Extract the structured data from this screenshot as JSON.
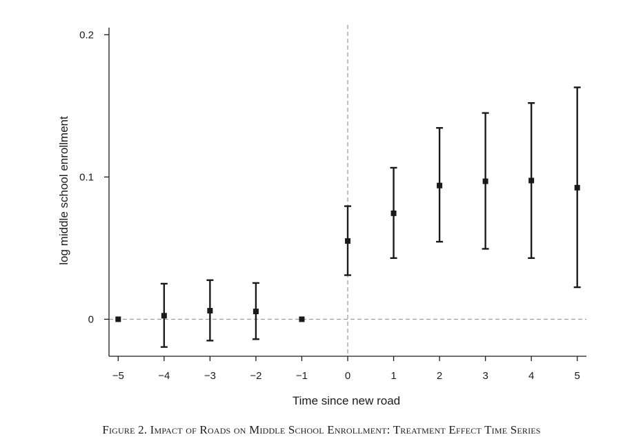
{
  "chart_data": {
    "type": "scatter",
    "subtype": "point-estimate-with-error-bars",
    "x": [
      -5,
      -4,
      -3,
      -2,
      -1,
      0,
      1,
      2,
      3,
      4,
      5
    ],
    "y": [
      0.0,
      0.0025,
      0.006,
      0.0055,
      0.0,
      0.055,
      0.0745,
      0.094,
      0.097,
      0.0975,
      0.0925
    ],
    "ci_lower": [
      0.0,
      -0.0195,
      -0.015,
      -0.014,
      0.0,
      0.031,
      0.043,
      0.0545,
      0.0495,
      0.043,
      0.0225
    ],
    "ci_upper": [
      0.0,
      0.025,
      0.0275,
      0.0255,
      0.0,
      0.0795,
      0.1065,
      0.1345,
      0.145,
      0.152,
      0.163
    ],
    "xticks": [
      "−5",
      "−4",
      "−3",
      "−2",
      "−1",
      "0",
      "1",
      "2",
      "3",
      "4",
      "5"
    ],
    "yticks": [
      "0",
      "0.1",
      "0.2"
    ],
    "ytick_values": [
      0,
      0.1,
      0.2
    ],
    "xlim": [
      -5.2,
      5.2
    ],
    "ylim": [
      -0.026,
      0.205
    ],
    "xlabel": "Time since new road",
    "ylabel": "log middle school enrollment",
    "reference_lines": {
      "horizontal_y": 0,
      "vertical_x": 0,
      "style": "dashed"
    },
    "grid": false,
    "marker_color": "#1a1a1a",
    "reference_line_color": "#999999",
    "caption": "Figure 2. Impact of Roads on Middle School Enrollment: Treatment Effect Time Series"
  }
}
